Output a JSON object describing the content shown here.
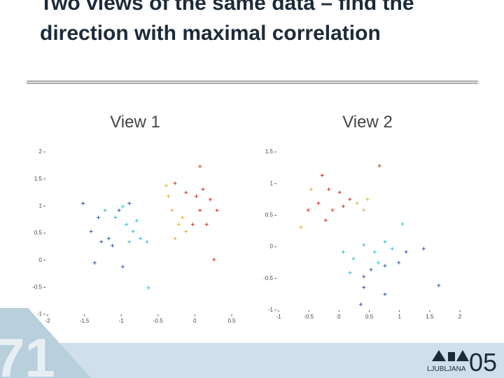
{
  "slide": {
    "title": "Two views of the same data – find the direction with maximal correlation",
    "page_number": "71",
    "logo_text": "LJUBLJANA",
    "logo_number": "05"
  },
  "chart_data": [
    {
      "type": "scatter",
      "title": "View 1",
      "xlim": [
        -2,
        0.5
      ],
      "xticks": [
        -2,
        -1.5,
        -1,
        -0.5,
        0,
        0.5
      ],
      "ylim": [
        -1,
        2
      ],
      "yticks": [
        -1,
        -0.5,
        0,
        0.5,
        1,
        1.5,
        2
      ],
      "series": [
        {
          "color": "#3050c0",
          "x": [
            -1.52,
            -1.41,
            -1.27,
            -1.12,
            -0.98,
            -1.36,
            -1.17,
            -1.03,
            -0.89,
            -1.31
          ],
          "values": [
            1.05,
            0.53,
            0.34,
            0.27,
            -0.12,
            -0.05,
            0.4,
            0.92,
            1.05,
            0.79
          ]
        },
        {
          "color": "#30c0d0",
          "x": [
            -1.22,
            -1.08,
            -0.93,
            -0.84,
            -0.74,
            -0.79,
            -0.98,
            -0.65,
            -0.89,
            -0.63
          ],
          "values": [
            0.92,
            0.79,
            0.66,
            0.53,
            0.4,
            0.73,
            0.99,
            0.34,
            0.34,
            -0.51
          ]
        },
        {
          "color": "#e0b030",
          "x": [
            -0.36,
            -0.31,
            -0.22,
            -0.17,
            -0.27,
            -0.12,
            -0.39
          ],
          "values": [
            1.18,
            0.92,
            0.66,
            0.79,
            0.4,
            0.53,
            1.38
          ]
        },
        {
          "color": "#d03020",
          "x": [
            -0.27,
            -0.12,
            0.02,
            0.11,
            0.21,
            0.07,
            0.3,
            -0.03,
            0.16,
            0.07,
            0.26
          ],
          "values": [
            1.42,
            1.25,
            1.18,
            1.31,
            1.12,
            0.92,
            0.92,
            0.66,
            0.66,
            1.73,
            0.01
          ]
        }
      ]
    },
    {
      "type": "scatter",
      "title": "View 2",
      "xlim": [
        -1,
        2
      ],
      "xticks": [
        -1,
        -0.5,
        0,
        0.5,
        1,
        1.5,
        2
      ],
      "ylim": [
        -1,
        1.5
      ],
      "yticks": [
        -1,
        -0.5,
        0,
        0.5,
        1,
        1.5
      ],
      "series": [
        {
          "color": "#d03020",
          "x": [
            -0.28,
            -0.17,
            0.01,
            0.18,
            0.07,
            -0.11,
            -0.34,
            -0.51,
            -0.22,
            0.67
          ],
          "values": [
            1.13,
            0.91,
            0.86,
            0.75,
            0.64,
            0.58,
            0.69,
            0.58,
            0.42,
            1.28
          ]
        },
        {
          "color": "#e0b030",
          "x": [
            0.3,
            0.47,
            -0.63,
            -0.46,
            0.41
          ],
          "values": [
            0.69,
            0.75,
            0.31,
            0.91,
            0.58
          ]
        },
        {
          "color": "#30c0d0",
          "x": [
            0.07,
            0.24,
            0.41,
            0.59,
            0.76,
            0.88,
            0.65,
            1.05,
            0.18
          ],
          "values": [
            -0.08,
            -0.19,
            0.03,
            -0.08,
            0.08,
            -0.03,
            -0.25,
            0.36,
            -0.41
          ]
        },
        {
          "color": "#3050c0",
          "x": [
            0.41,
            0.53,
            0.76,
            0.99,
            1.11,
            1.4,
            0.41,
            0.76,
            1.65,
            0.36
          ],
          "values": [
            -0.47,
            -0.36,
            -0.3,
            -0.25,
            -0.08,
            -0.03,
            -0.64,
            -0.75,
            -0.61,
            -0.91
          ]
        }
      ]
    }
  ]
}
